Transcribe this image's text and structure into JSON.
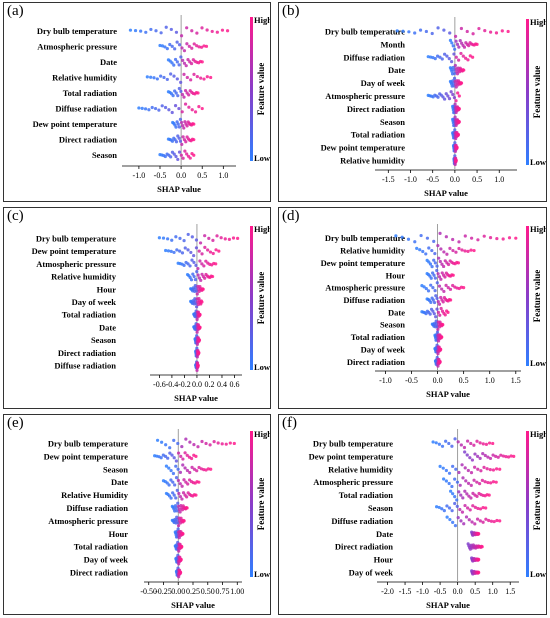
{
  "figure": {
    "colors": {
      "low": "#2f7fff",
      "mid": "#8a3cc8",
      "high": "#ff1a8c",
      "zero_line": "#888888"
    }
  },
  "chart_data": [
    {
      "type": "scatter",
      "panel_label": "(a)",
      "title": "",
      "xlabel": "SHAP value",
      "colorbar_label": "Feature value",
      "colorbar_high": "High",
      "colorbar_low": "Low",
      "xlim": [
        -1.4,
        1.3
      ],
      "xticks": [
        "-1.0",
        "-0.5",
        "0.0",
        "0.5",
        "1.0"
      ],
      "xtick_values": [
        -1.0,
        -0.5,
        0.0,
        0.5,
        1.0
      ],
      "features": [
        {
          "name": "Dry bulb temperature",
          "min": -1.2,
          "max": 1.1
        },
        {
          "name": "Atmospheric pressure",
          "min": -0.5,
          "max": 0.6
        },
        {
          "name": "Date",
          "min": -0.3,
          "max": 0.5
        },
        {
          "name": "Relative humidity",
          "min": -0.8,
          "max": 0.7
        },
        {
          "name": "Total radiation",
          "min": -0.3,
          "max": 0.4
        },
        {
          "name": "Diffuse radiation",
          "min": -1.0,
          "max": 0.5
        },
        {
          "name": "Dew point temperature",
          "min": -0.2,
          "max": 0.3
        },
        {
          "name": "Direct radiation",
          "min": -0.3,
          "max": 0.3
        },
        {
          "name": "Season",
          "min": -0.5,
          "max": 0.3
        }
      ]
    },
    {
      "type": "scatter",
      "panel_label": "(b)",
      "title": "",
      "xlabel": "SHAP value",
      "colorbar_label": "Feature value",
      "colorbar_high": "High",
      "colorbar_low": "Low",
      "xlim": [
        -1.8,
        1.4
      ],
      "xticks": [
        "-1.5",
        "-1.0",
        "-0.5",
        "0.0",
        "0.5",
        "1.0"
      ],
      "xtick_values": [
        -1.5,
        -1.0,
        -0.5,
        0.0,
        0.5,
        1.0
      ],
      "features": [
        {
          "name": "Dry bulb temperature",
          "min": -1.3,
          "max": 1.2
        },
        {
          "name": "Month",
          "min": -0.1,
          "max": 0.5
        },
        {
          "name": "Diffuse radiation",
          "min": -0.6,
          "max": 0.4
        },
        {
          "name": "Date",
          "min": -0.1,
          "max": 0.2
        },
        {
          "name": "Day of week",
          "min": -0.1,
          "max": 0.15
        },
        {
          "name": "Atmospheric pressure",
          "min": -0.6,
          "max": 0.1
        },
        {
          "name": "Direct radiation",
          "min": -0.05,
          "max": 0.1
        },
        {
          "name": "Season",
          "min": -0.05,
          "max": 0.1
        },
        {
          "name": "Total radiation",
          "min": -0.05,
          "max": 0.08
        },
        {
          "name": "Dew point temperature",
          "min": -0.03,
          "max": 0.05
        },
        {
          "name": "Relative humidity",
          "min": -0.02,
          "max": 0.03
        }
      ]
    },
    {
      "type": "scatter",
      "panel_label": "(c)",
      "title": "",
      "xlabel": "SHAP value",
      "colorbar_label": "Feature value",
      "colorbar_high": "High",
      "colorbar_low": "Low",
      "xlim": [
        -0.75,
        0.72
      ],
      "xticks": [
        "-0.6",
        "-0.4",
        "-0.2",
        "0.0",
        "0.2",
        "0.4",
        "0.6"
      ],
      "xtick_values": [
        -0.6,
        -0.4,
        -0.2,
        0.0,
        0.2,
        0.4,
        0.6
      ],
      "features": [
        {
          "name": "Dry bulb temperature",
          "min": -0.6,
          "max": 0.65
        },
        {
          "name": "Dew point temperature",
          "min": -0.5,
          "max": 0.35
        },
        {
          "name": "Atmospheric pressure",
          "min": -0.3,
          "max": 0.3
        },
        {
          "name": "Relative humidity",
          "min": -0.15,
          "max": 0.25
        },
        {
          "name": "Hour",
          "min": -0.1,
          "max": 0.1
        },
        {
          "name": "Day of week",
          "min": -0.1,
          "max": 0.08
        },
        {
          "name": "Total radiation",
          "min": -0.05,
          "max": 0.05
        },
        {
          "name": "Date",
          "min": -0.05,
          "max": 0.05
        },
        {
          "name": "Season",
          "min": -0.03,
          "max": 0.04
        },
        {
          "name": "Direct radiation",
          "min": -0.02,
          "max": 0.03
        },
        {
          "name": "Diffuse radiation",
          "min": -0.02,
          "max": 0.02
        }
      ]
    },
    {
      "type": "scatter",
      "panel_label": "(d)",
      "title": "",
      "xlabel": "SHAP value",
      "colorbar_label": "Feature value",
      "colorbar_high": "High",
      "colorbar_low": "Low",
      "xlim": [
        -1.2,
        1.6
      ],
      "xticks": [
        "-1.0",
        "-0.5",
        "0.0",
        "0.5",
        "1.0",
        "1.5"
      ],
      "xtick_values": [
        -1.0,
        -0.5,
        0.0,
        0.5,
        1.0,
        1.5
      ],
      "features": [
        {
          "name": "Dry bulb temperature",
          "min": -0.8,
          "max": 1.5
        },
        {
          "name": "Relative humidity",
          "min": -0.4,
          "max": 0.7
        },
        {
          "name": "Dew point temperature",
          "min": -0.2,
          "max": 0.4
        },
        {
          "name": "Hour",
          "min": -0.2,
          "max": 0.3
        },
        {
          "name": "Atmospheric pressure",
          "min": -0.3,
          "max": 0.5
        },
        {
          "name": "Diffuse radiation",
          "min": -0.2,
          "max": 0.25
        },
        {
          "name": "Date",
          "min": -0.3,
          "max": 0.2
        },
        {
          "name": "Season",
          "min": -0.1,
          "max": 0.1
        },
        {
          "name": "Total radiation",
          "min": -0.05,
          "max": 0.08
        },
        {
          "name": "Day of week",
          "min": -0.05,
          "max": 0.06
        },
        {
          "name": "Direct radiation",
          "min": -0.04,
          "max": 0.05
        }
      ]
    },
    {
      "type": "scatter",
      "panel_label": "(e)",
      "title": "",
      "xlabel": "SHAP value",
      "colorbar_label": "Feature value",
      "colorbar_high": "High",
      "colorbar_low": "Low",
      "xlim": [
        -0.58,
        1.08
      ],
      "xticks": [
        "-0.50",
        "-0.25",
        "0.00",
        "0.25",
        "0.50",
        "0.75",
        "1.00"
      ],
      "xtick_values": [
        -0.5,
        -0.25,
        0.0,
        0.25,
        0.5,
        0.75,
        1.0
      ],
      "features": [
        {
          "name": "Dry bulb temperature",
          "min": -0.35,
          "max": 0.95
        },
        {
          "name": "Dew point temperature",
          "min": -0.4,
          "max": 0.3
        },
        {
          "name": "Season",
          "min": -0.2,
          "max": 0.55
        },
        {
          "name": "Date",
          "min": -0.25,
          "max": 0.35
        },
        {
          "name": "Relative Humidity",
          "min": -0.2,
          "max": 0.3
        },
        {
          "name": "Diffuse radiation",
          "min": -0.1,
          "max": 0.15
        },
        {
          "name": "Atmospheric pressure",
          "min": -0.1,
          "max": 0.1
        },
        {
          "name": "Hour",
          "min": -0.05,
          "max": 0.08
        },
        {
          "name": "Total radiation",
          "min": -0.05,
          "max": 0.06
        },
        {
          "name": "Day of week",
          "min": -0.04,
          "max": 0.05
        },
        {
          "name": "Direct radiation",
          "min": -0.03,
          "max": 0.04
        }
      ]
    },
    {
      "type": "scatter",
      "panel_label": "(f)",
      "title": "",
      "xlabel": "SHAP value",
      "colorbar_label": "Feature value",
      "colorbar_high": "High",
      "colorbar_low": "Low",
      "xlim": [
        -2.3,
        1.75
      ],
      "xticks": [
        "-2.0",
        "-1.5",
        "-1.0",
        "-0.5",
        "0.0",
        "0.5",
        "1.0",
        "1.5"
      ],
      "xtick_values": [
        -2.0,
        -1.5,
        -1.0,
        -0.5,
        0.0,
        0.5,
        1.0,
        1.5
      ],
      "features": [
        {
          "name": "Dry bulb temperature",
          "min": -0.7,
          "max": 1.0
        },
        {
          "name": "Dew point temperature",
          "min": 0.2,
          "max": 1.6
        },
        {
          "name": "Relative humidity",
          "min": -0.5,
          "max": 1.2
        },
        {
          "name": "Atmospheric pressure",
          "min": -0.4,
          "max": 1.1
        },
        {
          "name": "Total radiation",
          "min": -0.2,
          "max": 0.9
        },
        {
          "name": "Season",
          "min": -0.6,
          "max": 0.8
        },
        {
          "name": "Diffuse radiation",
          "min": -0.3,
          "max": 1.2
        },
        {
          "name": "Date",
          "min": 0.4,
          "max": 0.6
        },
        {
          "name": "Direct radiation",
          "min": 0.3,
          "max": 0.7
        },
        {
          "name": "Hour",
          "min": 0.4,
          "max": 0.6
        },
        {
          "name": "Day of week",
          "min": 0.4,
          "max": 0.6
        }
      ]
    }
  ]
}
